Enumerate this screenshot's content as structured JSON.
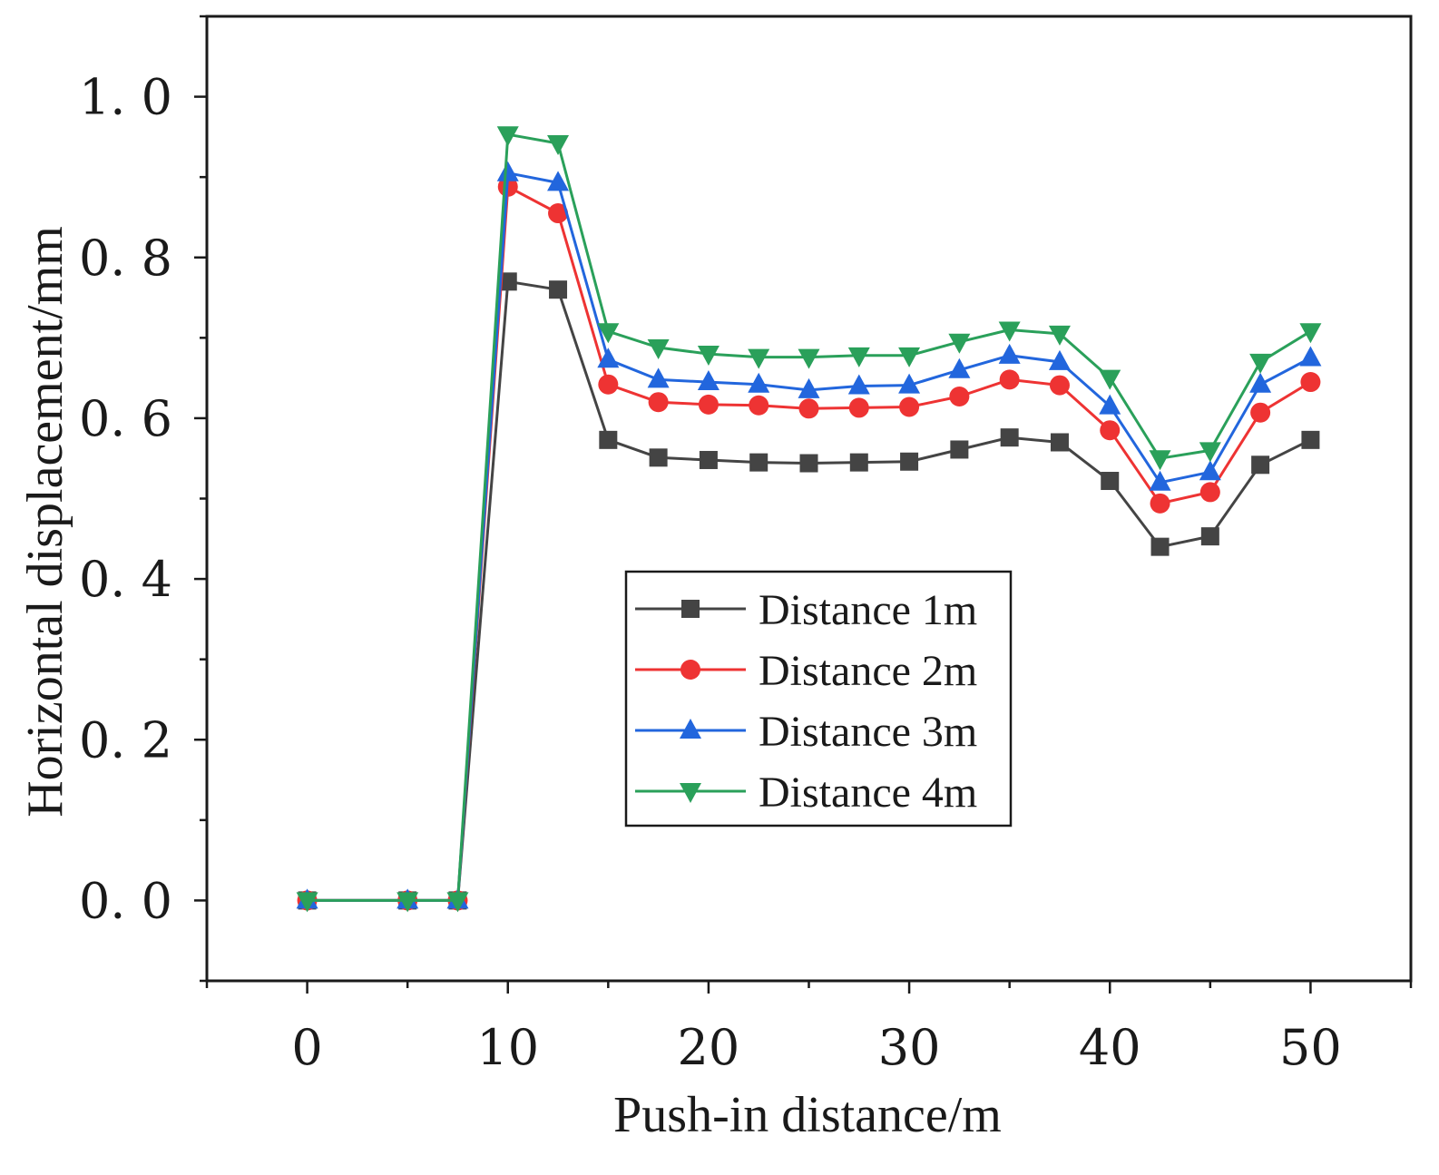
{
  "chart_data": {
    "type": "line",
    "title": "",
    "xlabel": "Push-in distance/m",
    "ylabel": "Horizontal displacement/mm",
    "xlim": [
      -5,
      55
    ],
    "ylim": [
      -0.1,
      1.1
    ],
    "xticks": [
      0,
      10,
      20,
      30,
      40,
      50
    ],
    "xtick_labels": [
      "0",
      "10",
      "20",
      "30",
      "40",
      "50"
    ],
    "yticks": [
      0.0,
      0.2,
      0.4,
      0.6,
      0.8,
      1.0
    ],
    "ytick_labels": [
      "0. 0",
      "0. 2",
      "0. 4",
      "0. 6",
      "0. 8",
      "1. 0"
    ],
    "grid": false,
    "legend_position": "center-right",
    "x": [
      0,
      5,
      7.5,
      10,
      12.5,
      15,
      17.5,
      20,
      22.5,
      25,
      27.5,
      30,
      32.5,
      35,
      37.5,
      40,
      42.5,
      45,
      47.5,
      50
    ],
    "series": [
      {
        "name": "Distance 1m",
        "color": "#444444",
        "marker": "square",
        "values": [
          0,
          0,
          0,
          0.77,
          0.76,
          0.573,
          0.551,
          0.548,
          0.545,
          0.544,
          0.545,
          0.546,
          0.561,
          0.576,
          0.57,
          0.522,
          0.44,
          0.453,
          0.542,
          0.573
        ]
      },
      {
        "name": "Distance 2m",
        "color": "#ee3333",
        "marker": "circle",
        "values": [
          0,
          0,
          0,
          0.888,
          0.855,
          0.642,
          0.62,
          0.617,
          0.616,
          0.612,
          0.613,
          0.614,
          0.627,
          0.648,
          0.641,
          0.585,
          0.494,
          0.508,
          0.607,
          0.645
        ]
      },
      {
        "name": "Distance 3m",
        "color": "#2266dd",
        "marker": "triangle-up",
        "values": [
          0,
          0,
          0,
          0.905,
          0.893,
          0.673,
          0.648,
          0.645,
          0.642,
          0.635,
          0.64,
          0.641,
          0.66,
          0.678,
          0.67,
          0.615,
          0.52,
          0.533,
          0.642,
          0.675
        ]
      },
      {
        "name": "Distance 4m",
        "color": "#2aa05a",
        "marker": "triangle-down",
        "values": [
          0,
          0,
          0,
          0.953,
          0.942,
          0.708,
          0.688,
          0.68,
          0.676,
          0.676,
          0.678,
          0.678,
          0.695,
          0.71,
          0.705,
          0.65,
          0.55,
          0.56,
          0.67,
          0.708
        ]
      }
    ]
  }
}
